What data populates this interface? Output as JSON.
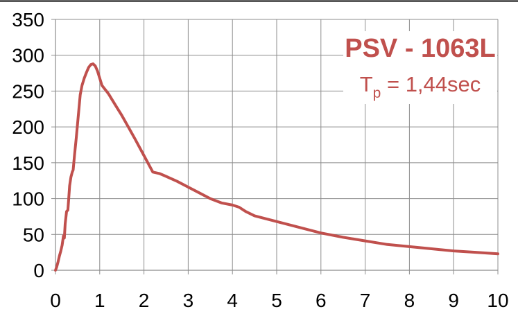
{
  "chart_data": {
    "type": "line",
    "title": "",
    "xlabel": "",
    "ylabel": "",
    "xlim": [
      0,
      10
    ],
    "ylim": [
      0,
      350
    ],
    "xticks": [
      0,
      1,
      2,
      3,
      4,
      5,
      6,
      7,
      8,
      9,
      10
    ],
    "yticks": [
      0,
      50,
      100,
      150,
      200,
      250,
      300,
      350
    ],
    "grid": true,
    "legend": "none",
    "annotation": {
      "name": "PSV - 1063L",
      "period_symbol": "T",
      "period_subscript": "p",
      "period_value": " = 1,44sec",
      "color": "#c0504d"
    },
    "series": [
      {
        "color": "#c0504d",
        "x": [
          0.0,
          0.03,
          0.06,
          0.09,
          0.12,
          0.15,
          0.18,
          0.2,
          0.22,
          0.25,
          0.28,
          0.3,
          0.32,
          0.35,
          0.38,
          0.4,
          0.43,
          0.47,
          0.5,
          0.53,
          0.56,
          0.6,
          0.65,
          0.7,
          0.75,
          0.8,
          0.85,
          0.9,
          0.95,
          1.0,
          1.05,
          1.1,
          1.15,
          1.2,
          1.3,
          1.4,
          1.5,
          1.6,
          1.8,
          2.0,
          2.2,
          2.35,
          2.5,
          2.75,
          3.0,
          3.25,
          3.5,
          3.75,
          4.0,
          4.15,
          4.3,
          4.5,
          5.0,
          5.5,
          6.0,
          6.5,
          7.0,
          7.5,
          8.0,
          8.5,
          9.0,
          9.5,
          10.0
        ],
        "y": [
          0,
          5,
          12,
          20,
          27,
          35,
          48,
          45,
          65,
          82,
          84,
          100,
          118,
          130,
          137,
          140,
          160,
          185,
          205,
          225,
          245,
          258,
          268,
          276,
          283,
          287,
          288,
          285,
          278,
          268,
          258,
          254,
          250,
          246,
          236,
          226,
          216,
          205,
          183,
          160,
          137,
          135,
          131,
          124,
          116,
          108,
          100,
          94,
          91,
          88,
          82,
          76,
          68,
          60,
          52,
          46,
          41,
          36,
          33,
          30,
          27,
          25,
          23
        ]
      }
    ]
  }
}
